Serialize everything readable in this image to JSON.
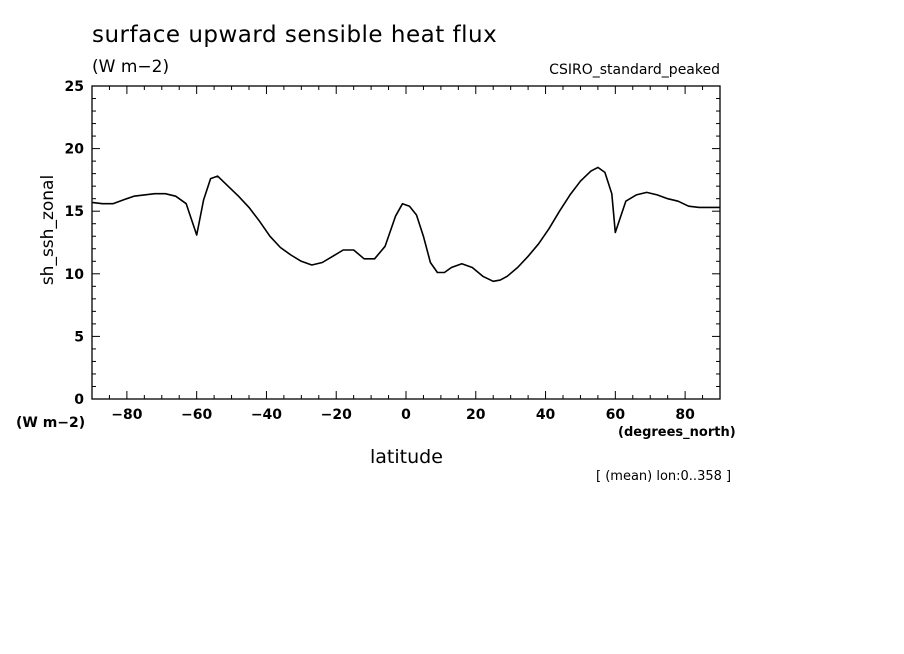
{
  "chart_data": {
    "type": "line",
    "title": "surface upward sensible heat flux",
    "units": "(W m−2)",
    "model_label": "CSIRO_standard_peaked",
    "ylabel": "sh_ssh_zonal",
    "y_units": "(W m−2)",
    "xlabel": "latitude",
    "x_units": "(degrees_north)",
    "note": "[ (mean) lon:0..358 ]",
    "xlim": [
      -90,
      90
    ],
    "ylim": [
      0,
      25
    ],
    "xticks": [
      -80,
      -60,
      -40,
      -20,
      0,
      20,
      40,
      60,
      80
    ],
    "xtick_labels": [
      "−80",
      "−60",
      "−40",
      "−20",
      "0",
      "20",
      "40",
      "60",
      "80"
    ],
    "yticks": [
      0,
      5,
      10,
      15,
      20,
      25
    ],
    "ytick_labels": [
      "0",
      "5",
      "10",
      "15",
      "20",
      "25"
    ],
    "grid": false,
    "series": [
      {
        "x": [
          -90,
          -87,
          -84,
          -81,
          -78,
          -75,
          -72,
          -69,
          -66,
          -63,
          -60,
          -58,
          -56,
          -54,
          -51,
          -48,
          -45,
          -42,
          -39,
          -36,
          -33,
          -30,
          -27,
          -24,
          -21,
          -18,
          -15,
          -12,
          -9,
          -6,
          -3,
          -1,
          1,
          3,
          5,
          7,
          9,
          11,
          13,
          16,
          19,
          22,
          25,
          27,
          29,
          32,
          35,
          38,
          41,
          44,
          47,
          50,
          53,
          55,
          57,
          59,
          60,
          63,
          66,
          69,
          72,
          75,
          78,
          81,
          84,
          87,
          90
        ],
        "y": [
          15.7,
          15.6,
          15.6,
          15.9,
          16.2,
          16.3,
          16.4,
          16.4,
          16.2,
          15.6,
          13.1,
          15.9,
          17.6,
          17.8,
          17.0,
          16.2,
          15.3,
          14.2,
          13.0,
          12.1,
          11.5,
          11.0,
          10.7,
          10.9,
          11.4,
          11.9,
          11.9,
          11.2,
          11.2,
          12.2,
          14.6,
          15.6,
          15.4,
          14.7,
          13.0,
          10.9,
          10.1,
          10.1,
          10.5,
          10.8,
          10.5,
          9.8,
          9.4,
          9.5,
          9.8,
          10.5,
          11.4,
          12.4,
          13.6,
          15.0,
          16.3,
          17.4,
          18.2,
          18.5,
          18.1,
          16.4,
          13.3,
          15.8,
          16.3,
          16.5,
          16.3,
          16.0,
          15.8,
          15.4,
          15.3,
          15.3,
          15.3
        ]
      }
    ]
  }
}
